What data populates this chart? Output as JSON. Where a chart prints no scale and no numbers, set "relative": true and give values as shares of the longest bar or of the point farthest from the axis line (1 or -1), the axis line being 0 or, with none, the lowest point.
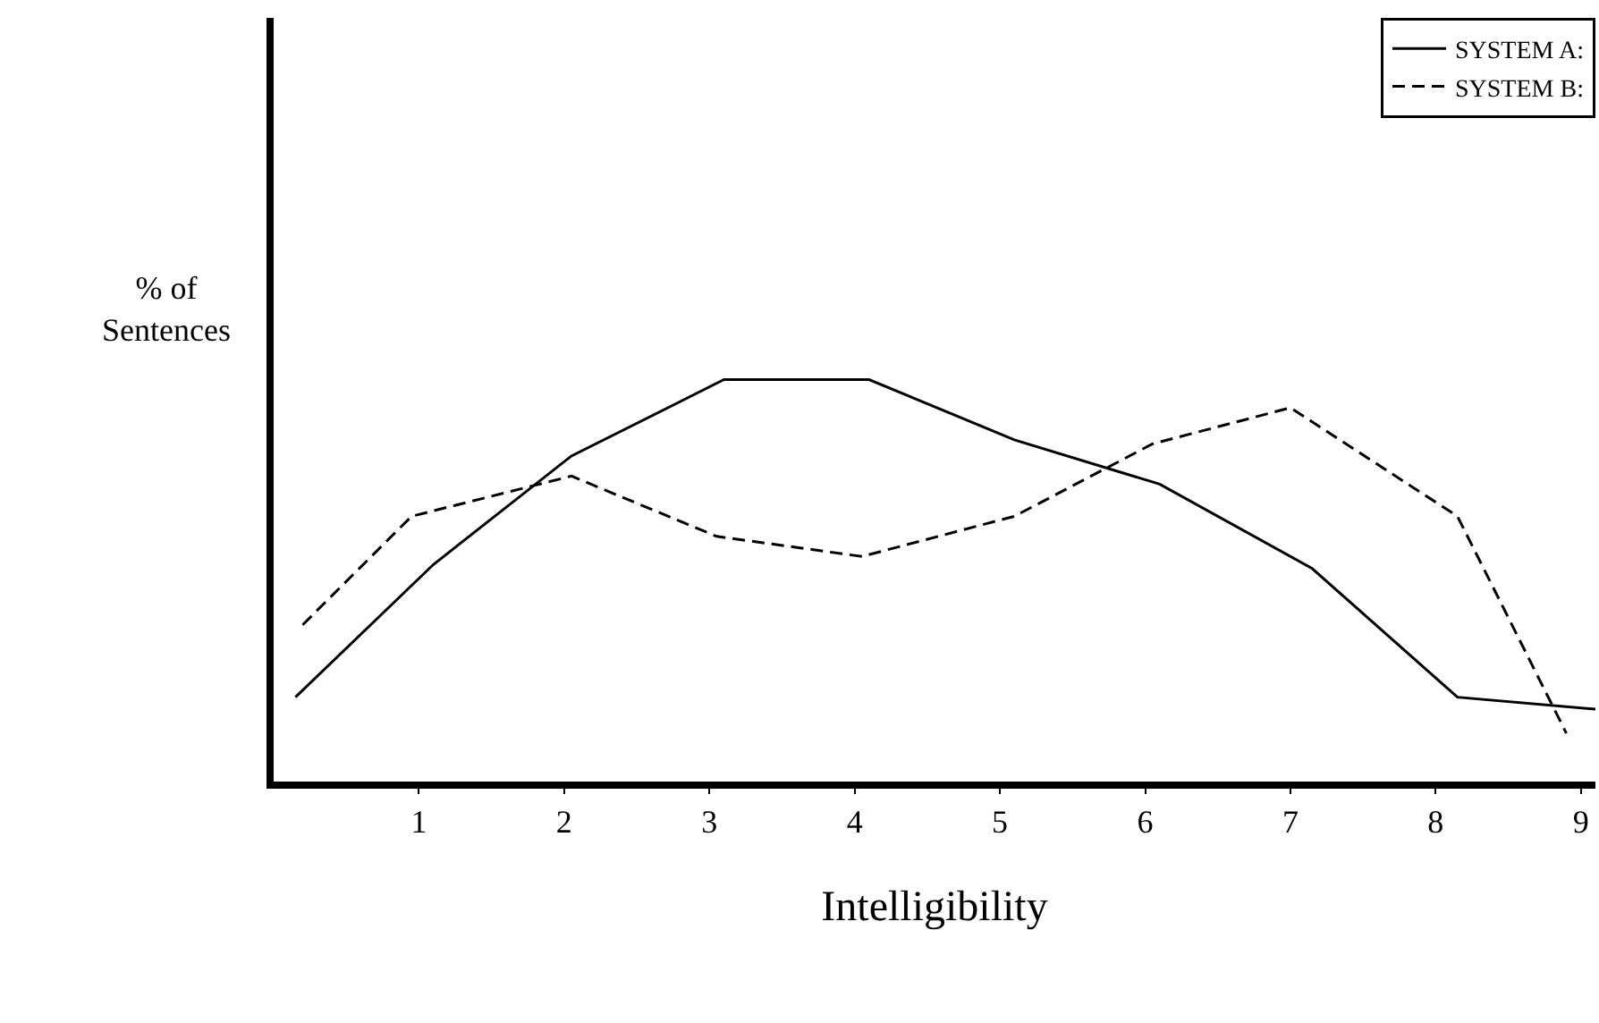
{
  "chart_data": {
    "type": "line",
    "relative": true,
    "xlabel": "Intelligibility",
    "ylabel": "% of\nSentences",
    "xlim": [
      0,
      9.1
    ],
    "xticks": [
      1,
      2,
      3,
      4,
      5,
      6,
      7,
      8,
      9
    ],
    "legend": "top right",
    "marker": "none",
    "series": [
      {
        "name": "SYSTEM A:",
        "color": "#000000",
        "line_style": "solid",
        "x": [
          0.15,
          1.1,
          2.05,
          3.1,
          4.1,
          5.1,
          6.1,
          7.15,
          8.15,
          9.1
        ],
        "values": [
          0.21,
          0.54,
          0.81,
          1,
          1,
          0.85,
          0.74,
          0.53,
          0.21,
          0.18
        ]
      },
      {
        "name": "SYSTEM B:",
        "color": "#000000",
        "line_style": "dashed",
        "x": [
          0.2,
          0.95,
          2.05,
          3.05,
          4.05,
          5.1,
          6.05,
          7.0,
          8.15,
          8.9
        ],
        "values": [
          0.39,
          0.66,
          0.76,
          0.61,
          0.56,
          0.66,
          0.84,
          0.93,
          0.66,
          0.12
        ]
      }
    ]
  }
}
